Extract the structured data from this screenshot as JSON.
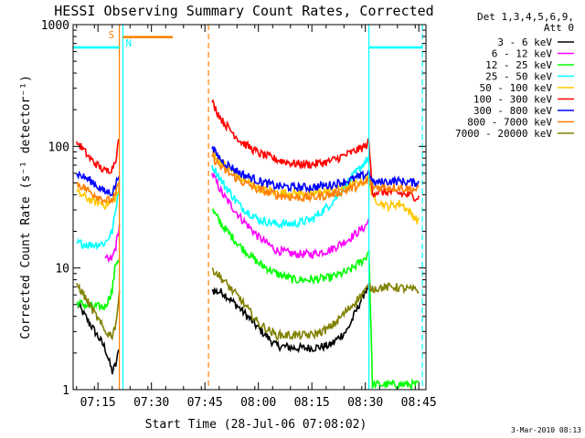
{
  "chart_data": {
    "type": "line",
    "title": "HESSI Observing Summary Count Rates, Corrected",
    "ylabel": "Corrected Count Rate (s⁻¹ detector⁻¹)",
    "xlabel": "Start Time (28-Jul-06 07:08:02)",
    "footer": "3-Mar-2010 08:13",
    "y_scale": "log",
    "ylim": [
      1,
      1000
    ],
    "xlim": [
      "07:08:02",
      "08:47:00"
    ],
    "yticks": [
      {
        "value": 1,
        "label": "1"
      },
      {
        "value": 10,
        "label": "10"
      },
      {
        "value": 100,
        "label": "100"
      },
      {
        "value": 1000,
        "label": "1000"
      }
    ],
    "xticks": [
      "07:15",
      "07:30",
      "07:45",
      "08:00",
      "08:15",
      "08:30",
      "08:45"
    ],
    "legend_header": [
      "Det 1,3,4,5,6,9,",
      "Att 0"
    ],
    "legend_position": "right",
    "markers": {
      "saa_label": "S",
      "night_label": "N",
      "saa_color": "#ff7f00",
      "night_color": "#00ffff"
    },
    "series": [
      {
        "name": "3 - 6 keV",
        "color": "#000000",
        "x": [
          "07:09",
          "07:13",
          "07:17",
          "07:19",
          "07:20",
          "07:21",
          "07:47",
          "07:50",
          "07:55",
          "08:00",
          "08:05",
          "08:10",
          "08:15",
          "08:20",
          "08:25",
          "08:30",
          "08:31"
        ],
        "y": [
          5.2,
          3.4,
          2.2,
          1.4,
          1.6,
          2.2,
          6.5,
          6.3,
          4.6,
          3.2,
          2.3,
          2.2,
          2.2,
          2.3,
          3.1,
          6.5,
          7.0
        ]
      },
      {
        "name": "6 - 12 keV",
        "color": "#ff00ff",
        "x": [
          "07:17",
          "07:18",
          "07:19",
          "07:20",
          "07:21",
          "07:47",
          "07:50",
          "07:55",
          "08:00",
          "08:05",
          "08:10",
          "08:15",
          "08:20",
          "08:25",
          "08:30",
          "08:31"
        ],
        "y": [
          12,
          11.5,
          12,
          15,
          22,
          60,
          40,
          26,
          18,
          14,
          13,
          13,
          14,
          17,
          22,
          25
        ]
      },
      {
        "name": "12 - 25 keV",
        "color": "#00ff00",
        "x": [
          "07:09",
          "07:13",
          "07:17",
          "07:19",
          "07:20",
          "07:21",
          "07:47",
          "07:50",
          "07:55",
          "08:00",
          "08:05",
          "08:10",
          "08:15",
          "08:20",
          "08:25",
          "08:30",
          "08:31",
          "08:32",
          "08:38",
          "08:45"
        ],
        "y": [
          5.2,
          4.8,
          4.8,
          6.5,
          11,
          12,
          30,
          22,
          15,
          11,
          9,
          8,
          8,
          8.3,
          9.3,
          12,
          14,
          1.1,
          1.1,
          1.1
        ]
      },
      {
        "name": "25 - 50 keV",
        "color": "#00ffff",
        "x": [
          "07:09",
          "07:13",
          "07:17",
          "07:19",
          "07:20",
          "07:21",
          "07:47",
          "07:50",
          "07:55",
          "08:00",
          "08:05",
          "08:10",
          "08:15",
          "08:20",
          "08:25",
          "08:30",
          "08:31"
        ],
        "y": [
          16,
          15.5,
          16,
          20,
          30,
          50,
          70,
          50,
          32,
          25,
          23,
          23,
          25,
          33,
          50,
          75,
          80
        ]
      },
      {
        "name": "50 - 100 keV",
        "color": "#ffc800",
        "x": [
          "07:09",
          "07:13",
          "07:17",
          "07:19",
          "07:20",
          "07:21",
          "07:47",
          "07:50",
          "07:55",
          "08:00",
          "08:05",
          "08:10",
          "08:15",
          "08:20",
          "08:25",
          "08:30",
          "08:31",
          "08:32",
          "08:36",
          "08:40",
          "08:45"
        ],
        "y": [
          42,
          36,
          33,
          35,
          38,
          45,
          90,
          72,
          55,
          45,
          42,
          41,
          41,
          43,
          47,
          52,
          56,
          38,
          32,
          34,
          24
        ]
      },
      {
        "name": "100 - 300 keV",
        "color": "#ff0000",
        "x": [
          "07:09",
          "07:13",
          "07:17",
          "07:19",
          "07:20",
          "07:21",
          "07:47",
          "07:50",
          "07:55",
          "08:00",
          "08:05",
          "08:10",
          "08:15",
          "08:20",
          "08:25",
          "08:30",
          "08:31",
          "08:32",
          "08:38",
          "08:45"
        ],
        "y": [
          110,
          78,
          62,
          66,
          80,
          118,
          230,
          160,
          110,
          88,
          78,
          72,
          71,
          75,
          86,
          100,
          108,
          42,
          42,
          38
        ]
      },
      {
        "name": "300 - 800 keV",
        "color": "#0000ff",
        "x": [
          "07:09",
          "07:13",
          "07:17",
          "07:19",
          "07:20",
          "07:21",
          "07:47",
          "07:50",
          "07:55",
          "08:00",
          "08:05",
          "08:10",
          "08:15",
          "08:20",
          "08:25",
          "08:30",
          "08:31",
          "08:32",
          "08:38",
          "08:45"
        ],
        "y": [
          60,
          52,
          42,
          42,
          48,
          62,
          95,
          75,
          60,
          52,
          47,
          46,
          46,
          48,
          52,
          58,
          62,
          50,
          52,
          50
        ]
      },
      {
        "name": "800 - 7000 keV",
        "color": "#ff7f00",
        "x": [
          "07:09",
          "07:13",
          "07:17",
          "07:19",
          "07:20",
          "07:21",
          "07:47",
          "07:50",
          "07:55",
          "08:00",
          "08:05",
          "08:10",
          "08:15",
          "08:20",
          "08:25",
          "08:30",
          "08:31",
          "08:32",
          "08:38",
          "08:45"
        ],
        "y": [
          50,
          42,
          36,
          36,
          40,
          52,
          82,
          65,
          52,
          44,
          40,
          38,
          38,
          40,
          44,
          50,
          54,
          46,
          46,
          44
        ]
      },
      {
        "name": "7000 - 20000 keV",
        "color": "#808000",
        "x": [
          "07:09",
          "07:13",
          "07:17",
          "07:19",
          "07:20",
          "07:21",
          "07:47",
          "07:50",
          "07:55",
          "08:00",
          "08:05",
          "08:10",
          "08:15",
          "08:20",
          "08:25",
          "08:30",
          "08:31",
          "08:32",
          "08:38",
          "08:45"
        ],
        "y": [
          7.5,
          4.8,
          3,
          2.8,
          3.5,
          6,
          10,
          8,
          5.5,
          3.5,
          2.8,
          2.8,
          2.8,
          3.2,
          4.5,
          6.5,
          7,
          6.8,
          7,
          6.5
        ]
      }
    ]
  }
}
